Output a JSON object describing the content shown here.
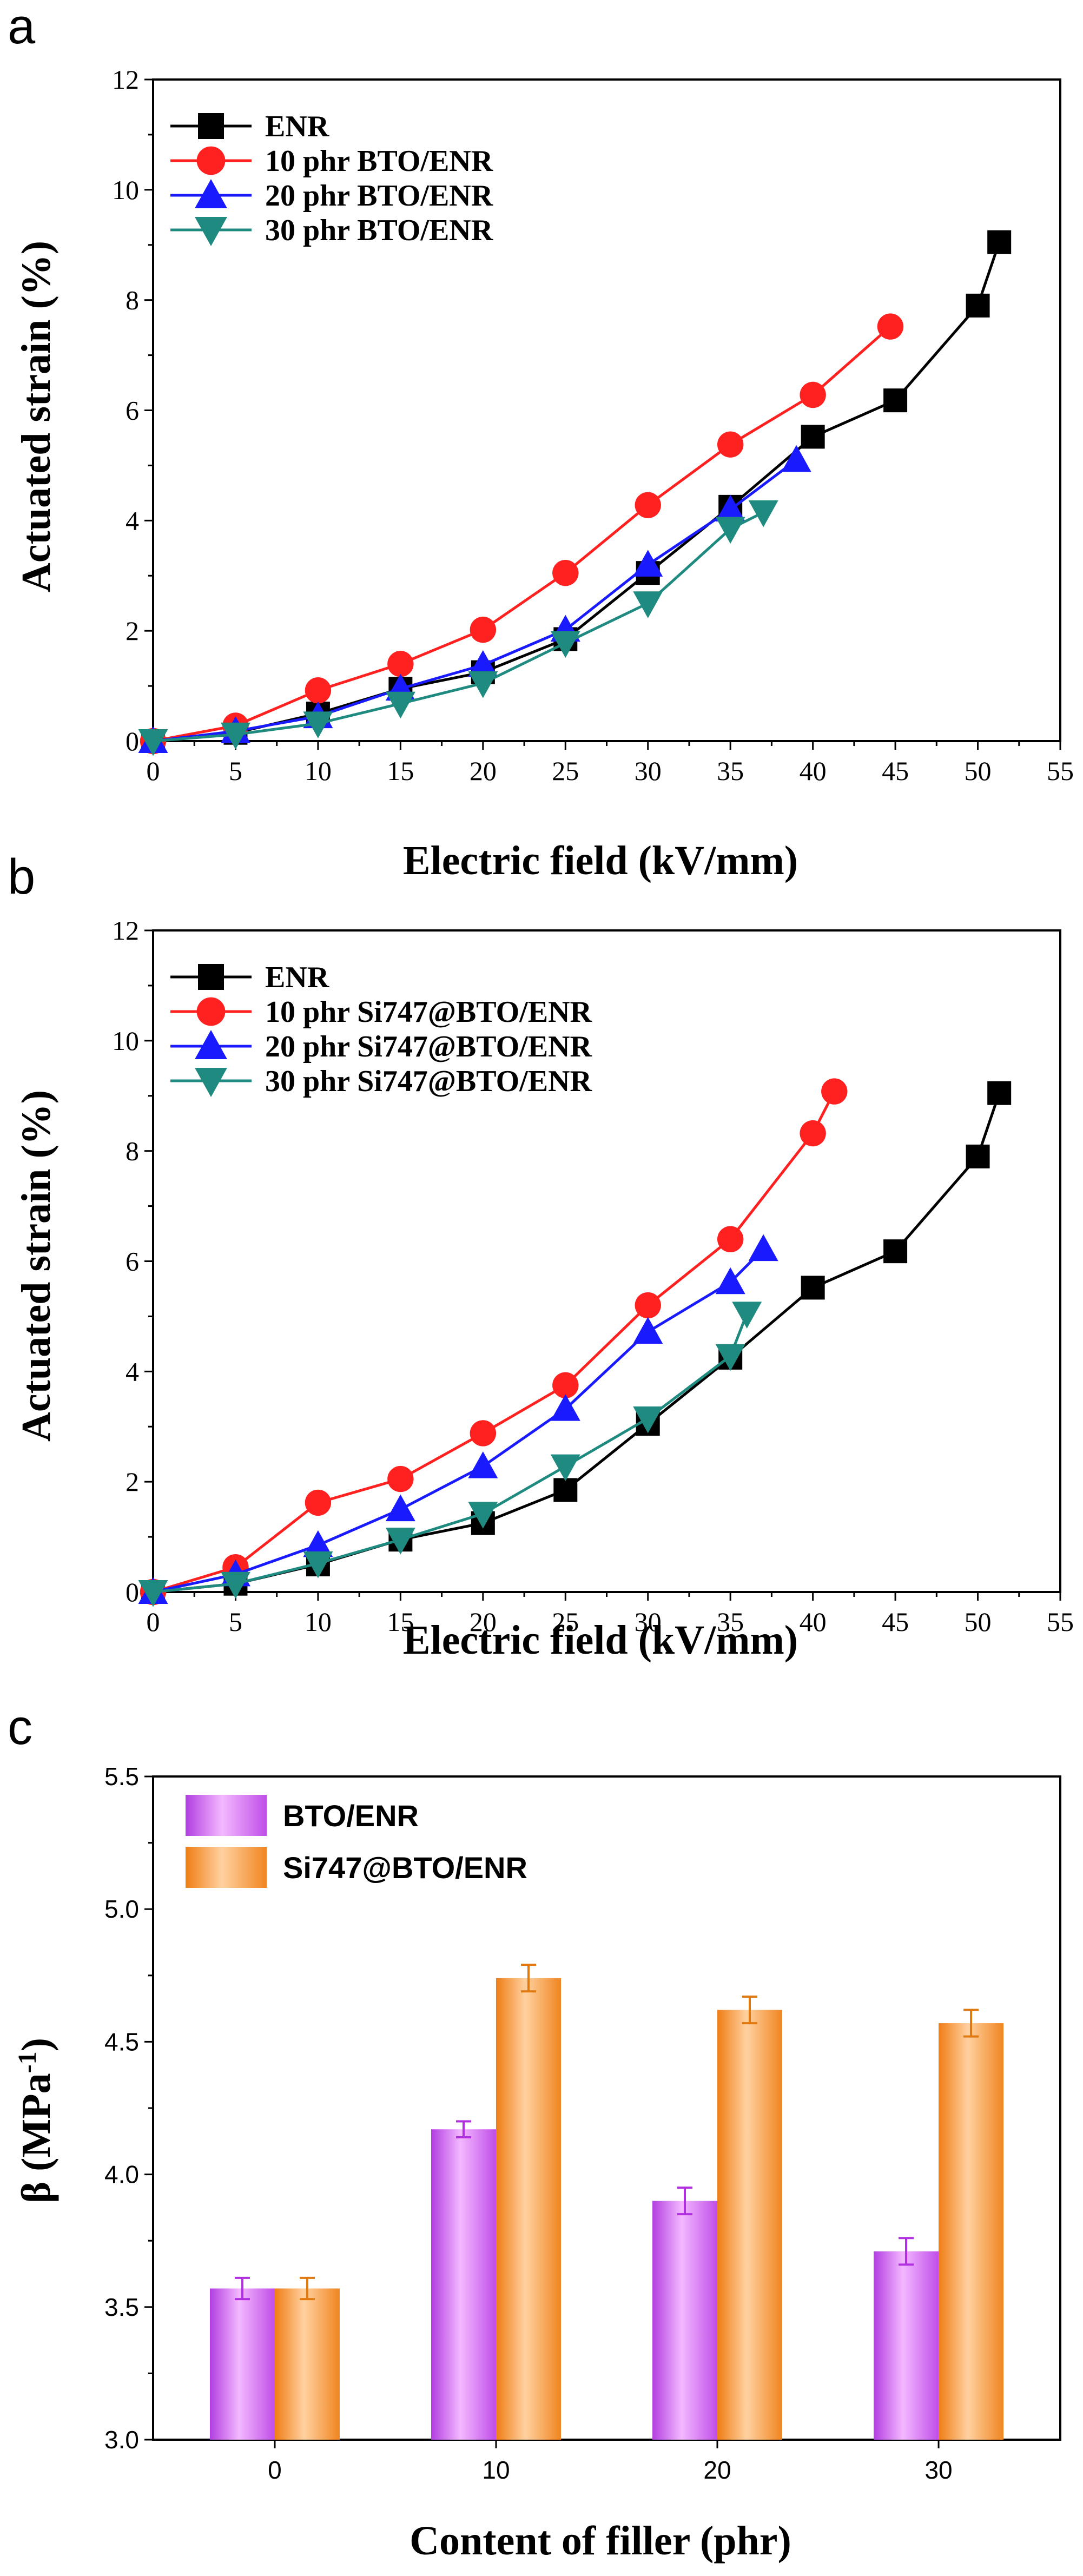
{
  "panels": [
    {
      "letter": "a"
    },
    {
      "letter": "b"
    },
    {
      "letter": "c"
    }
  ],
  "chart_data": [
    {
      "type": "line",
      "panel": "a",
      "xlabel": "Electric field (kV/mm)",
      "ylabel": "Actuated strain (%)",
      "xlim": [
        0,
        55
      ],
      "ylim": [
        0,
        12
      ],
      "xticks": [
        0,
        5,
        10,
        15,
        20,
        25,
        30,
        35,
        40,
        45,
        50,
        55
      ],
      "yticks": [
        0,
        2,
        4,
        6,
        8,
        10,
        12
      ],
      "legend_position": "top-left",
      "series": [
        {
          "name": "ENR",
          "color": "#000000",
          "marker": "square",
          "x": [
            0,
            5,
            10,
            15,
            20,
            25,
            30,
            35,
            40,
            45,
            50,
            51.3
          ],
          "y": [
            0,
            0.15,
            0.5,
            0.95,
            1.25,
            1.85,
            3.05,
            4.25,
            5.52,
            6.18,
            7.9,
            9.05
          ]
        },
        {
          "name": "10 phr BTO/ENR",
          "color": "#ff2020",
          "marker": "circle",
          "x": [
            0,
            5,
            10,
            15,
            20,
            25,
            30,
            35,
            40,
            44.7
          ],
          "y": [
            0,
            0.28,
            0.92,
            1.4,
            2.02,
            3.05,
            4.28,
            5.38,
            6.28,
            7.52
          ]
        },
        {
          "name": "20 phr BTO/ENR",
          "color": "#1a1aff",
          "marker": "triangle-up",
          "x": [
            0,
            5,
            10,
            15,
            20,
            25,
            30,
            35,
            39
          ],
          "y": [
            0,
            0.18,
            0.45,
            0.95,
            1.38,
            2.02,
            3.2,
            4.2,
            5.1
          ]
        },
        {
          "name": "30 phr BTO/ENR",
          "color": "#1f8a80",
          "marker": "triangle-down",
          "x": [
            0,
            5,
            10,
            15,
            20,
            25,
            30,
            35,
            37
          ],
          "y": [
            0,
            0.12,
            0.32,
            0.68,
            1.05,
            1.78,
            2.5,
            3.85,
            4.15
          ]
        }
      ]
    },
    {
      "type": "line",
      "panel": "b",
      "xlabel": "Electric field (kV/mm)",
      "ylabel": "Actuated strain (%)",
      "xlim": [
        0,
        55
      ],
      "ylim": [
        0,
        12
      ],
      "xticks": [
        0,
        5,
        10,
        15,
        20,
        25,
        30,
        35,
        40,
        45,
        50,
        55
      ],
      "yticks": [
        0,
        2,
        4,
        6,
        8,
        10,
        12
      ],
      "legend_position": "top-left",
      "series": [
        {
          "name": "ENR",
          "color": "#000000",
          "marker": "square",
          "x": [
            0,
            5,
            10,
            15,
            20,
            25,
            30,
            35,
            40,
            45,
            50,
            51.3
          ],
          "y": [
            0,
            0.15,
            0.5,
            0.95,
            1.25,
            1.85,
            3.05,
            4.25,
            5.52,
            6.18,
            7.9,
            9.05
          ]
        },
        {
          "name": "10 phr Si747@BTO/ENR",
          "color": "#ff2020",
          "marker": "circle",
          "x": [
            0,
            5,
            10,
            15,
            20,
            25,
            30,
            35,
            40,
            41.3
          ],
          "y": [
            0,
            0.45,
            1.62,
            2.05,
            2.88,
            3.75,
            5.2,
            6.4,
            8.32,
            9.08
          ]
        },
        {
          "name": "20 phr Si747@BTO/ENR",
          "color": "#1a1aff",
          "marker": "triangle-up",
          "x": [
            0,
            5,
            10,
            15,
            20,
            25,
            30,
            35,
            37
          ],
          "y": [
            0,
            0.32,
            0.85,
            1.5,
            2.28,
            3.32,
            4.72,
            5.62,
            6.22
          ]
        },
        {
          "name": "30 phr Si747@BTO/ENR",
          "color": "#1f8a80",
          "marker": "triangle-down",
          "x": [
            0,
            5,
            10,
            15,
            20,
            25,
            30,
            35,
            36
          ],
          "y": [
            0,
            0.15,
            0.52,
            0.95,
            1.42,
            2.28,
            3.15,
            4.28,
            5.05
          ]
        }
      ]
    },
    {
      "type": "bar",
      "panel": "c",
      "xlabel": "Content of filler (phr)",
      "ylabel": "β (MPa-1)",
      "ylabel_main": "β (MPa",
      "ylabel_sup": "-1",
      "ylabel_close": ")",
      "ylim": [
        3.0,
        5.5
      ],
      "yticks": [
        "3.0",
        "3.5",
        "4.0",
        "4.5",
        "5.0",
        "5.5"
      ],
      "categories": [
        "0",
        "10",
        "20",
        "30"
      ],
      "legend_position": "top-left",
      "series": [
        {
          "name": "BTO/ENR",
          "color": "#d65ef2",
          "error_color": "#b030e0",
          "values": [
            3.57,
            4.17,
            3.9,
            3.71
          ],
          "errors": [
            0.04,
            0.03,
            0.05,
            0.05
          ]
        },
        {
          "name": "Si747@BTO/ENR",
          "color": "#f7932e",
          "error_color": "#e07a10",
          "values": [
            3.57,
            4.74,
            4.62,
            4.57
          ],
          "errors": [
            0.04,
            0.05,
            0.05,
            0.05
          ]
        }
      ]
    }
  ]
}
